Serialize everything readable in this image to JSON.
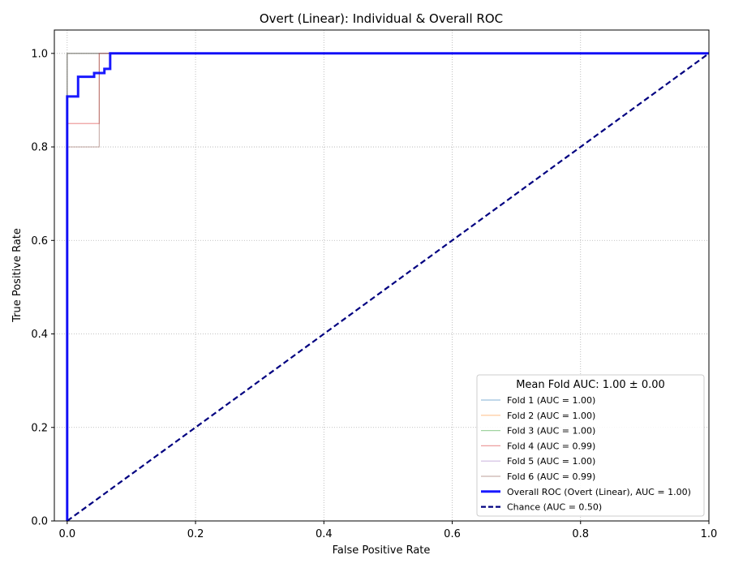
{
  "chart_data": {
    "type": "line",
    "title": "Overt (Linear): Individual & Overall ROC",
    "xlabel": "False Positive Rate",
    "ylabel": "True Positive Rate",
    "xlim": [
      -0.02,
      1.0
    ],
    "ylim": [
      0.0,
      1.05
    ],
    "xticks": [
      "0.0",
      "0.2",
      "0.4",
      "0.6",
      "0.8",
      "1.0"
    ],
    "yticks": [
      "0.0",
      "0.2",
      "0.4",
      "0.6",
      "0.8",
      "1.0"
    ],
    "grid": true,
    "legend_position": "lower-right",
    "legend_title": "Mean Fold AUC: 1.00 ± 0.00",
    "series": [
      {
        "name": "Fold 1 (AUC = 1.00)",
        "color": "#1f77b4",
        "x": [
          0,
          0,
          1
        ],
        "y": [
          0,
          1,
          1
        ]
      },
      {
        "name": "Fold 2 (AUC = 1.00)",
        "color": "#ff7f0e",
        "x": [
          0,
          0,
          1
        ],
        "y": [
          0,
          1,
          1
        ]
      },
      {
        "name": "Fold 3 (AUC = 1.00)",
        "color": "#2ca02c",
        "x": [
          0,
          0,
          1
        ],
        "y": [
          0,
          1,
          1
        ]
      },
      {
        "name": "Fold 4 (AUC = 0.99)",
        "color": "#d62728",
        "x": [
          0,
          0,
          0.05,
          0.05,
          1
        ],
        "y": [
          0,
          0.85,
          0.85,
          1,
          1
        ]
      },
      {
        "name": "Fold 5 (AUC = 1.00)",
        "color": "#9467bd",
        "x": [
          0,
          0,
          1
        ],
        "y": [
          0,
          1,
          1
        ]
      },
      {
        "name": "Fold 6 (AUC = 0.99)",
        "color": "#8c564b",
        "x": [
          0,
          0,
          0.05,
          0.05,
          1
        ],
        "y": [
          0,
          0.8,
          0.8,
          1,
          1
        ]
      },
      {
        "name": "Overall ROC (Overt (Linear), AUC = 1.00)",
        "color": "#0000ff",
        "style": "solid-thick",
        "x": [
          0,
          0,
          0.017,
          0.017,
          0.042,
          0.042,
          0.058,
          0.058,
          0.067,
          0.067,
          1
        ],
        "y": [
          0,
          0.908,
          0.908,
          0.95,
          0.95,
          0.958,
          0.958,
          0.967,
          0.967,
          1,
          1
        ]
      },
      {
        "name": "Chance (AUC = 0.50)",
        "color": "#000080",
        "style": "dashed",
        "x": [
          0,
          1
        ],
        "y": [
          0,
          1
        ]
      }
    ]
  }
}
